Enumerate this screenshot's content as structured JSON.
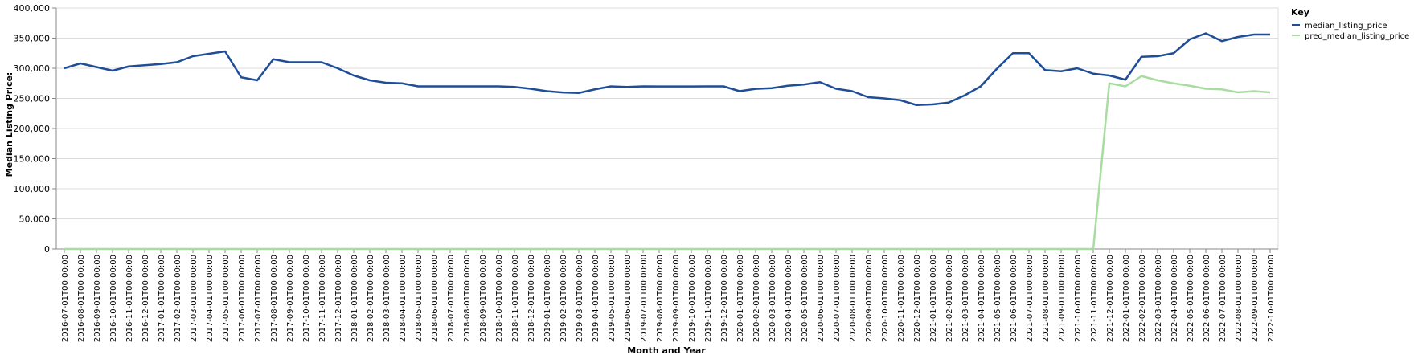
{
  "chart_data": {
    "type": "line",
    "title": "",
    "xlabel": "Month and Year",
    "ylabel": "Median Listing Price:",
    "ylim": [
      0,
      400000
    ],
    "y_ticks": [
      0,
      50000,
      100000,
      150000,
      200000,
      250000,
      300000,
      350000,
      400000
    ],
    "y_tick_labels": [
      "0",
      "50,000",
      "100,000",
      "150,000",
      "200,000",
      "250,000",
      "300,000",
      "350,000",
      "400,000"
    ],
    "grid": "horizontal",
    "legend": {
      "title": "Key",
      "placement": "top-right"
    },
    "categories": [
      "2016-07-01T00:00:00",
      "2016-08-01T00:00:00",
      "2016-09-01T00:00:00",
      "2016-10-01T00:00:00",
      "2016-11-01T00:00:00",
      "2016-12-01T00:00:00",
      "2017-01-01T00:00:00",
      "2017-02-01T00:00:00",
      "2017-03-01T00:00:00",
      "2017-04-01T00:00:00",
      "2017-05-01T00:00:00",
      "2017-06-01T00:00:00",
      "2017-07-01T00:00:00",
      "2017-08-01T00:00:00",
      "2017-09-01T00:00:00",
      "2017-10-01T00:00:00",
      "2017-11-01T00:00:00",
      "2017-12-01T00:00:00",
      "2018-01-01T00:00:00",
      "2018-02-01T00:00:00",
      "2018-03-01T00:00:00",
      "2018-04-01T00:00:00",
      "2018-05-01T00:00:00",
      "2018-06-01T00:00:00",
      "2018-07-01T00:00:00",
      "2018-08-01T00:00:00",
      "2018-09-01T00:00:00",
      "2018-10-01T00:00:00",
      "2018-11-01T00:00:00",
      "2018-12-01T00:00:00",
      "2019-01-01T00:00:00",
      "2019-02-01T00:00:00",
      "2019-03-01T00:00:00",
      "2019-04-01T00:00:00",
      "2019-05-01T00:00:00",
      "2019-06-01T00:00:00",
      "2019-07-01T00:00:00",
      "2019-08-01T00:00:00",
      "2019-09-01T00:00:00",
      "2019-10-01T00:00:00",
      "2019-11-01T00:00:00",
      "2019-12-01T00:00:00",
      "2020-01-01T00:00:00",
      "2020-02-01T00:00:00",
      "2020-03-01T00:00:00",
      "2020-04-01T00:00:00",
      "2020-05-01T00:00:00",
      "2020-06-01T00:00:00",
      "2020-07-01T00:00:00",
      "2020-08-01T00:00:00",
      "2020-09-01T00:00:00",
      "2020-10-01T00:00:00",
      "2020-11-01T00:00:00",
      "2020-12-01T00:00:00",
      "2021-01-01T00:00:00",
      "2021-02-01T00:00:00",
      "2021-03-01T00:00:00",
      "2021-04-01T00:00:00",
      "2021-05-01T00:00:00",
      "2021-06-01T00:00:00",
      "2021-07-01T00:00:00",
      "2021-08-01T00:00:00",
      "2021-09-01T00:00:00",
      "2021-10-01T00:00:00",
      "2021-11-01T00:00:00",
      "2021-12-01T00:00:00",
      "2022-01-01T00:00:00",
      "2022-02-01T00:00:00",
      "2022-03-01T00:00:00",
      "2022-04-01T00:00:00",
      "2022-05-01T00:00:00",
      "2022-06-01T00:00:00",
      "2022-07-01T00:00:00",
      "2022-08-01T00:00:00",
      "2022-09-01T00:00:00",
      "2022-10-01T00:00:00"
    ],
    "series": [
      {
        "name": "median_listing_price",
        "color": "#1f4e96",
        "values": [
          300000,
          308000,
          302000,
          296000,
          303000,
          305000,
          307000,
          310000,
          320000,
          324000,
          328000,
          285000,
          280000,
          315000,
          310000,
          310000,
          310000,
          300000,
          288000,
          280000,
          276000,
          275000,
          270000,
          270000,
          270000,
          270000,
          270000,
          270000,
          269000,
          266000,
          262000,
          259900,
          259000,
          265000,
          270000,
          269000,
          270000,
          269900,
          269900,
          269900,
          270000,
          270000,
          262000,
          265900,
          267000,
          271000,
          273000,
          277000,
          266000,
          262000,
          252000,
          250000,
          247000,
          239000,
          240000,
          243000,
          255000,
          270000,
          299000,
          325000,
          325000,
          297000,
          295000,
          300000,
          291000,
          288000,
          281000,
          319000,
          320000,
          325000,
          348000,
          358000,
          345000,
          352000,
          356000,
          356000
        ]
      },
      {
        "name": "pred_median_listing_price",
        "color": "#a8dca0",
        "values": [
          0,
          0,
          0,
          0,
          0,
          0,
          0,
          0,
          0,
          0,
          0,
          0,
          0,
          0,
          0,
          0,
          0,
          0,
          0,
          0,
          0,
          0,
          0,
          0,
          0,
          0,
          0,
          0,
          0,
          0,
          0,
          0,
          0,
          0,
          0,
          0,
          0,
          0,
          0,
          0,
          0,
          0,
          0,
          0,
          0,
          0,
          0,
          0,
          0,
          0,
          0,
          0,
          0,
          0,
          0,
          0,
          0,
          0,
          0,
          0,
          0,
          0,
          0,
          0,
          0,
          275000,
          270000,
          287000,
          280000,
          275000,
          271000,
          266000,
          265000,
          260000,
          262000,
          260000
        ]
      }
    ]
  }
}
